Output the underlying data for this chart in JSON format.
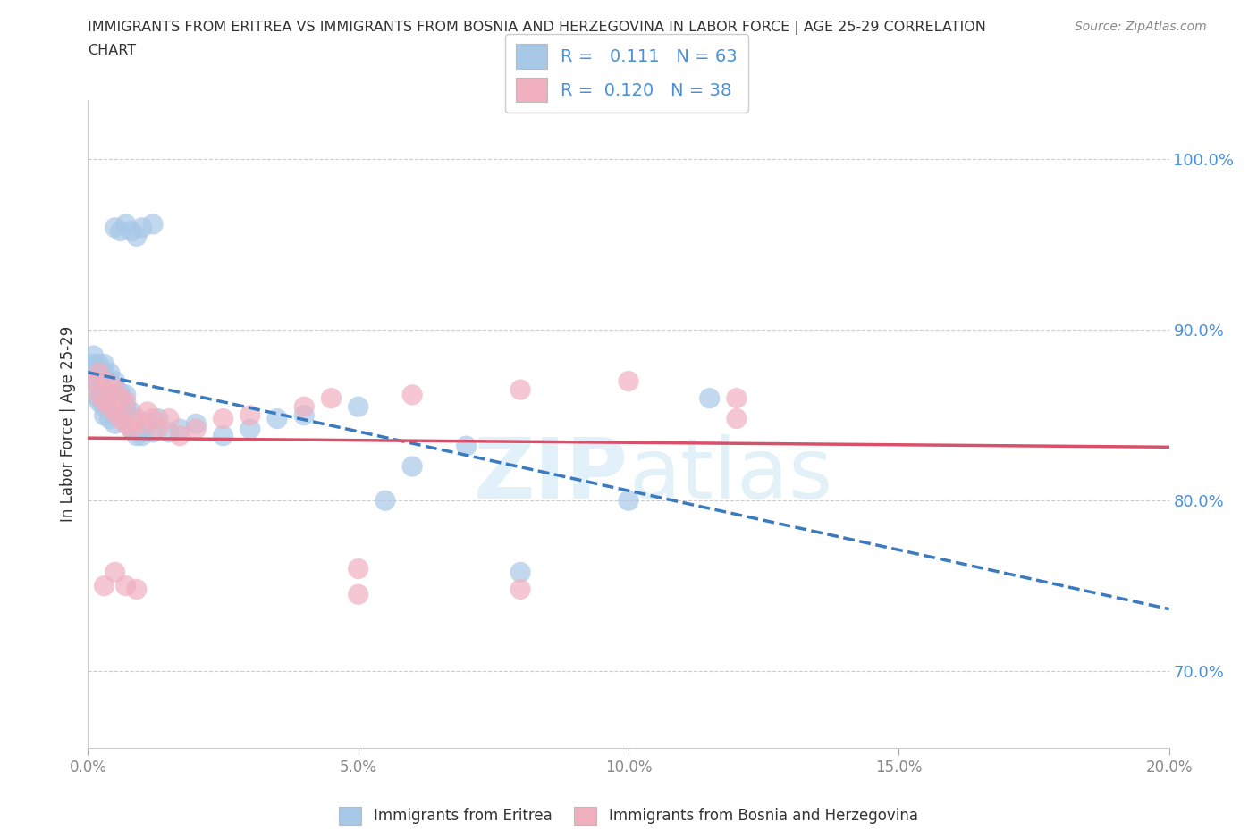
{
  "title_line1": "IMMIGRANTS FROM ERITREA VS IMMIGRANTS FROM BOSNIA AND HERZEGOVINA IN LABOR FORCE | AGE 25-29 CORRELATION",
  "title_line2": "CHART",
  "source_text": "Source: ZipAtlas.com",
  "ylabel": "In Labor Force | Age 25-29",
  "xlim": [
    0.0,
    0.2
  ],
  "ylim": [
    0.655,
    1.035
  ],
  "xtick_labels": [
    "0.0%",
    "",
    "5.0%",
    "",
    "10.0%",
    "",
    "15.0%",
    "",
    "20.0%"
  ],
  "xtick_vals": [
    0.0,
    0.025,
    0.05,
    0.075,
    0.1,
    0.125,
    0.15,
    0.175,
    0.2
  ],
  "ytick_labels": [
    "70.0%",
    "80.0%",
    "90.0%",
    "100.0%"
  ],
  "ytick_vals": [
    0.7,
    0.8,
    0.9,
    1.0
  ],
  "color_eritrea": "#a8c8e8",
  "color_bosnia": "#f0b0c0",
  "color_line_eritrea": "#3a7abf",
  "color_line_bosnia": "#d9506a",
  "color_ytick": "#4a90d9",
  "color_xtick": "#aaaaaa",
  "watermark_zip": "ZIP",
  "watermark_atlas": "atlas",
  "legend_label1": "R =   0.111   N = 63",
  "legend_label2": "R =  0.120   N = 38",
  "eritrea_x": [
    0.001,
    0.001,
    0.001,
    0.001,
    0.002,
    0.002,
    0.002,
    0.002,
    0.002,
    0.002,
    0.003,
    0.003,
    0.003,
    0.003,
    0.003,
    0.003,
    0.003,
    0.004,
    0.004,
    0.004,
    0.004,
    0.004,
    0.004,
    0.005,
    0.005,
    0.005,
    0.005,
    0.006,
    0.006,
    0.006,
    0.006,
    0.007,
    0.007,
    0.007,
    0.008,
    0.008,
    0.009,
    0.009,
    0.01,
    0.011,
    0.012,
    0.013,
    0.015,
    0.017,
    0.02,
    0.025,
    0.03,
    0.035,
    0.04,
    0.05,
    0.055,
    0.06,
    0.07,
    0.08,
    0.1,
    0.115,
    0.005,
    0.006,
    0.007,
    0.008,
    0.009,
    0.01,
    0.012
  ],
  "eritrea_y": [
    0.87,
    0.875,
    0.88,
    0.885,
    0.86,
    0.865,
    0.87,
    0.875,
    0.88,
    0.858,
    0.85,
    0.855,
    0.86,
    0.865,
    0.87,
    0.875,
    0.88,
    0.848,
    0.855,
    0.86,
    0.865,
    0.87,
    0.875,
    0.845,
    0.855,
    0.865,
    0.87,
    0.848,
    0.852,
    0.858,
    0.863,
    0.845,
    0.855,
    0.862,
    0.842,
    0.852,
    0.838,
    0.848,
    0.838,
    0.845,
    0.84,
    0.848,
    0.84,
    0.842,
    0.845,
    0.838,
    0.842,
    0.848,
    0.85,
    0.855,
    0.8,
    0.82,
    0.832,
    0.758,
    0.8,
    0.86,
    0.96,
    0.958,
    0.962,
    0.958,
    0.955,
    0.96,
    0.962
  ],
  "bosnia_x": [
    0.001,
    0.002,
    0.002,
    0.003,
    0.003,
    0.004,
    0.004,
    0.005,
    0.005,
    0.006,
    0.006,
    0.007,
    0.007,
    0.008,
    0.009,
    0.01,
    0.011,
    0.012,
    0.013,
    0.015,
    0.017,
    0.02,
    0.025,
    0.03,
    0.04,
    0.05,
    0.06,
    0.08,
    0.1,
    0.12,
    0.003,
    0.005,
    0.007,
    0.009,
    0.045,
    0.08,
    0.05,
    0.12
  ],
  "bosnia_y": [
    0.87,
    0.862,
    0.875,
    0.858,
    0.87,
    0.855,
    0.868,
    0.852,
    0.865,
    0.848,
    0.86,
    0.845,
    0.858,
    0.842,
    0.848,
    0.845,
    0.852,
    0.848,
    0.842,
    0.848,
    0.838,
    0.842,
    0.848,
    0.85,
    0.855,
    0.76,
    0.862,
    0.865,
    0.87,
    0.86,
    0.75,
    0.758,
    0.75,
    0.748,
    0.86,
    0.748,
    0.745,
    0.848
  ]
}
